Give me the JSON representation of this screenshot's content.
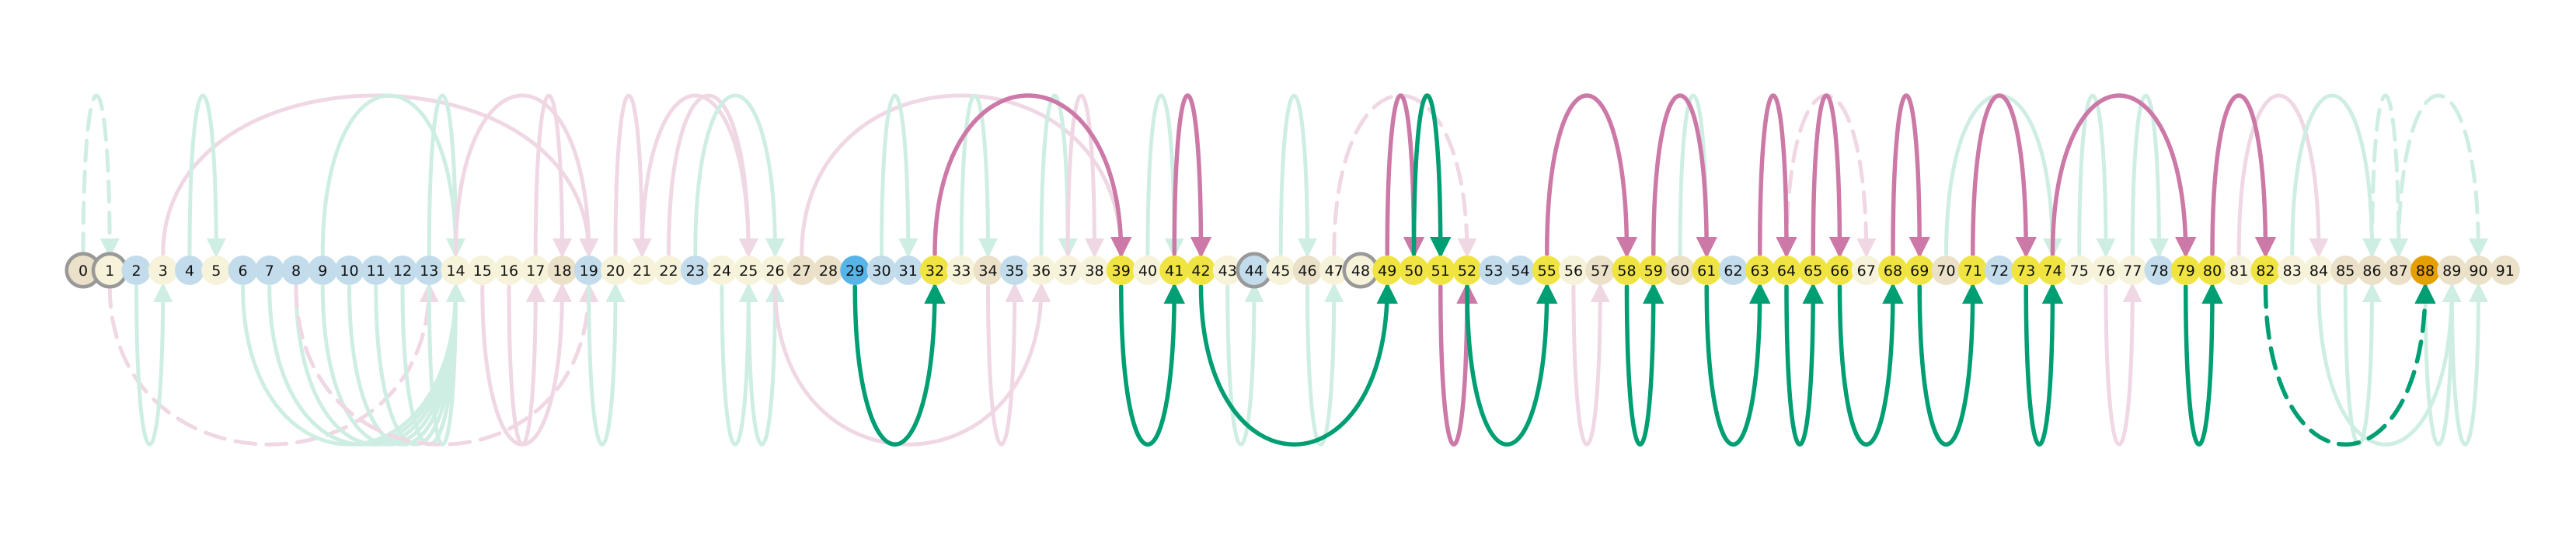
{
  "palette": {
    "node_default": "#ebe1c8",
    "node_light": "#f7f3da",
    "node_blue": "#c2dcec",
    "node_yellow": "#f0e442",
    "node_darkblue": "#56b4e9",
    "node_orange": "#e69f00",
    "ring": "#999999",
    "green_strong": "#009e73",
    "green_faint": "#cfeee3",
    "pink_strong": "#cc79a7",
    "pink_faint": "#f0d7e4"
  },
  "nodes": [
    {
      "label": "0",
      "color": "node_default",
      "ring": true
    },
    {
      "label": "1",
      "color": "node_light",
      "ring": true
    },
    {
      "label": "2",
      "color": "node_blue"
    },
    {
      "label": "3",
      "color": "node_light"
    },
    {
      "label": "4",
      "color": "node_blue"
    },
    {
      "label": "5",
      "color": "node_light"
    },
    {
      "label": "6",
      "color": "node_blue"
    },
    {
      "label": "7",
      "color": "node_blue"
    },
    {
      "label": "8",
      "color": "node_blue"
    },
    {
      "label": "9",
      "color": "node_blue"
    },
    {
      "label": "10",
      "color": "node_blue"
    },
    {
      "label": "11",
      "color": "node_blue"
    },
    {
      "label": "12",
      "color": "node_blue"
    },
    {
      "label": "13",
      "color": "node_blue"
    },
    {
      "label": "14",
      "color": "node_light"
    },
    {
      "label": "15",
      "color": "node_light"
    },
    {
      "label": "16",
      "color": "node_light"
    },
    {
      "label": "17",
      "color": "node_light"
    },
    {
      "label": "18",
      "color": "node_default"
    },
    {
      "label": "19",
      "color": "node_blue"
    },
    {
      "label": "20",
      "color": "node_light"
    },
    {
      "label": "21",
      "color": "node_light"
    },
    {
      "label": "22",
      "color": "node_light"
    },
    {
      "label": "23",
      "color": "node_blue"
    },
    {
      "label": "24",
      "color": "node_light"
    },
    {
      "label": "25",
      "color": "node_light"
    },
    {
      "label": "26",
      "color": "node_light"
    },
    {
      "label": "27",
      "color": "node_default"
    },
    {
      "label": "28",
      "color": "node_default"
    },
    {
      "label": "29",
      "color": "node_darkblue"
    },
    {
      "label": "30",
      "color": "node_blue"
    },
    {
      "label": "31",
      "color": "node_blue"
    },
    {
      "label": "32",
      "color": "node_yellow"
    },
    {
      "label": "33",
      "color": "node_light"
    },
    {
      "label": "34",
      "color": "node_default"
    },
    {
      "label": "35",
      "color": "node_blue"
    },
    {
      "label": "36",
      "color": "node_light"
    },
    {
      "label": "37",
      "color": "node_light"
    },
    {
      "label": "38",
      "color": "node_light"
    },
    {
      "label": "39",
      "color": "node_yellow"
    },
    {
      "label": "40",
      "color": "node_light"
    },
    {
      "label": "41",
      "color": "node_yellow"
    },
    {
      "label": "42",
      "color": "node_yellow"
    },
    {
      "label": "43",
      "color": "node_light"
    },
    {
      "label": "44",
      "color": "node_blue",
      "ring": true
    },
    {
      "label": "45",
      "color": "node_light"
    },
    {
      "label": "46",
      "color": "node_default"
    },
    {
      "label": "47",
      "color": "node_light"
    },
    {
      "label": "48",
      "color": "node_light",
      "ring": true
    },
    {
      "label": "49",
      "color": "node_yellow"
    },
    {
      "label": "50",
      "color": "node_yellow"
    },
    {
      "label": "51",
      "color": "node_yellow"
    },
    {
      "label": "52",
      "color": "node_yellow"
    },
    {
      "label": "53",
      "color": "node_blue"
    },
    {
      "label": "54",
      "color": "node_blue"
    },
    {
      "label": "55",
      "color": "node_yellow"
    },
    {
      "label": "56",
      "color": "node_light"
    },
    {
      "label": "57",
      "color": "node_default"
    },
    {
      "label": "58",
      "color": "node_yellow"
    },
    {
      "label": "59",
      "color": "node_yellow"
    },
    {
      "label": "60",
      "color": "node_default"
    },
    {
      "label": "61",
      "color": "node_yellow"
    },
    {
      "label": "62",
      "color": "node_blue"
    },
    {
      "label": "63",
      "color": "node_yellow"
    },
    {
      "label": "64",
      "color": "node_yellow"
    },
    {
      "label": "65",
      "color": "node_yellow"
    },
    {
      "label": "66",
      "color": "node_yellow"
    },
    {
      "label": "67",
      "color": "node_light"
    },
    {
      "label": "68",
      "color": "node_yellow"
    },
    {
      "label": "69",
      "color": "node_yellow"
    },
    {
      "label": "70",
      "color": "node_default"
    },
    {
      "label": "71",
      "color": "node_yellow"
    },
    {
      "label": "72",
      "color": "node_blue"
    },
    {
      "label": "73",
      "color": "node_yellow"
    },
    {
      "label": "74",
      "color": "node_yellow"
    },
    {
      "label": "75",
      "color": "node_light"
    },
    {
      "label": "76",
      "color": "node_light"
    },
    {
      "label": "77",
      "color": "node_light"
    },
    {
      "label": "78",
      "color": "node_blue"
    },
    {
      "label": "79",
      "color": "node_yellow"
    },
    {
      "label": "80",
      "color": "node_yellow"
    },
    {
      "label": "81",
      "color": "node_light"
    },
    {
      "label": "82",
      "color": "node_yellow"
    },
    {
      "label": "83",
      "color": "node_light"
    },
    {
      "label": "84",
      "color": "node_light"
    },
    {
      "label": "85",
      "color": "node_default"
    },
    {
      "label": "86",
      "color": "node_default"
    },
    {
      "label": "87",
      "color": "node_default"
    },
    {
      "label": "88",
      "color": "node_orange"
    },
    {
      "label": "89",
      "color": "node_default"
    },
    {
      "label": "90",
      "color": "node_default"
    },
    {
      "label": "91",
      "color": "node_default"
    }
  ],
  "edges": [
    {
      "from": 0,
      "to": 1,
      "side": "above",
      "color": "green_faint",
      "dash": true
    },
    {
      "from": 1,
      "to": 13,
      "side": "below",
      "color": "pink_faint",
      "dash": true
    },
    {
      "from": 3,
      "to": 19,
      "side": "above",
      "color": "pink_faint"
    },
    {
      "from": 4,
      "to": 5,
      "side": "above",
      "color": "green_faint"
    },
    {
      "from": 2,
      "to": 3,
      "side": "below",
      "color": "green_faint"
    },
    {
      "from": 6,
      "to": 14,
      "side": "below",
      "color": "green_faint"
    },
    {
      "from": 7,
      "to": 14,
      "side": "below",
      "color": "green_faint"
    },
    {
      "from": 8,
      "to": 14,
      "side": "below",
      "color": "green_faint"
    },
    {
      "from": 9,
      "to": 14,
      "side": "below",
      "color": "green_faint"
    },
    {
      "from": 10,
      "to": 14,
      "side": "below",
      "color": "green_faint"
    },
    {
      "from": 11,
      "to": 14,
      "side": "below",
      "color": "green_faint"
    },
    {
      "from": 12,
      "to": 14,
      "side": "below",
      "color": "green_faint"
    },
    {
      "from": 13,
      "to": 14,
      "side": "below",
      "color": "green_faint"
    },
    {
      "from": 9,
      "to": 14,
      "side": "above",
      "color": "green_faint"
    },
    {
      "from": 13,
      "to": 14,
      "side": "above",
      "color": "green_faint"
    },
    {
      "from": 14,
      "to": 19,
      "side": "above",
      "color": "pink_faint"
    },
    {
      "from": 15,
      "to": 18,
      "side": "below",
      "color": "pink_faint"
    },
    {
      "from": 16,
      "to": 17,
      "side": "below",
      "color": "pink_faint"
    },
    {
      "from": 8,
      "to": 19,
      "side": "below",
      "color": "pink_faint",
      "dash": true
    },
    {
      "from": 17,
      "to": 18,
      "side": "above",
      "color": "pink_faint"
    },
    {
      "from": 19,
      "to": 20,
      "side": "below",
      "color": "green_faint"
    },
    {
      "from": 20,
      "to": 21,
      "side": "above",
      "color": "pink_faint"
    },
    {
      "from": 21,
      "to": 25,
      "side": "above",
      "color": "pink_faint"
    },
    {
      "from": 22,
      "to": 25,
      "side": "above",
      "color": "pink_faint"
    },
    {
      "from": 23,
      "to": 26,
      "side": "above",
      "color": "green_faint"
    },
    {
      "from": 24,
      "to": 25,
      "side": "below",
      "color": "green_faint"
    },
    {
      "from": 25,
      "to": 26,
      "side": "below",
      "color": "green_faint"
    },
    {
      "from": 26,
      "to": 36,
      "side": "below",
      "color": "pink_faint"
    },
    {
      "from": 27,
      "to": 39,
      "side": "above",
      "color": "pink_faint"
    },
    {
      "from": 29,
      "to": 32,
      "side": "below",
      "color": "green_strong",
      "strong": true
    },
    {
      "from": 32,
      "to": 39,
      "side": "above",
      "color": "pink_strong",
      "strong": true
    },
    {
      "from": 30,
      "to": 31,
      "side": "above",
      "color": "green_faint"
    },
    {
      "from": 33,
      "to": 34,
      "side": "above",
      "color": "green_faint"
    },
    {
      "from": 34,
      "to": 35,
      "side": "below",
      "color": "pink_faint"
    },
    {
      "from": 36,
      "to": 37,
      "side": "above",
      "color": "green_faint"
    },
    {
      "from": 37,
      "to": 38,
      "side": "above",
      "color": "pink_faint"
    },
    {
      "from": 39,
      "to": 41,
      "side": "below",
      "color": "green_strong",
      "strong": true
    },
    {
      "from": 41,
      "to": 42,
      "side": "above",
      "color": "pink_strong",
      "strong": true
    },
    {
      "from": 42,
      "to": 49,
      "side": "below",
      "color": "green_strong",
      "strong": true
    },
    {
      "from": 40,
      "to": 41,
      "side": "above",
      "color": "green_faint"
    },
    {
      "from": 43,
      "to": 44,
      "side": "below",
      "color": "green_faint"
    },
    {
      "from": 45,
      "to": 46,
      "side": "above",
      "color": "green_faint"
    },
    {
      "from": 46,
      "to": 47,
      "side": "below",
      "color": "green_faint"
    },
    {
      "from": 47,
      "to": 52,
      "side": "above",
      "color": "pink_faint",
      "dash": true
    },
    {
      "from": 49,
      "to": 50,
      "side": "above",
      "color": "pink_strong",
      "strong": true
    },
    {
      "from": 50,
      "to": 51,
      "side": "above",
      "color": "green_strong",
      "strong": true
    },
    {
      "from": 51,
      "to": 52,
      "side": "below",
      "color": "pink_strong",
      "strong": true
    },
    {
      "from": 52,
      "to": 55,
      "side": "below",
      "color": "green_strong",
      "strong": true
    },
    {
      "from": 55,
      "to": 58,
      "side": "above",
      "color": "pink_strong",
      "strong": true
    },
    {
      "from": 56,
      "to": 57,
      "side": "below",
      "color": "pink_faint"
    },
    {
      "from": 58,
      "to": 59,
      "side": "below",
      "color": "green_strong",
      "strong": true
    },
    {
      "from": 59,
      "to": 61,
      "side": "above",
      "color": "pink_strong",
      "strong": true
    },
    {
      "from": 60,
      "to": 61,
      "side": "above",
      "color": "green_faint"
    },
    {
      "from": 61,
      "to": 63,
      "side": "below",
      "color": "green_strong",
      "strong": true
    },
    {
      "from": 63,
      "to": 64,
      "side": "above",
      "color": "pink_strong",
      "strong": true
    },
    {
      "from": 64,
      "to": 65,
      "side": "below",
      "color": "green_strong",
      "strong": true
    },
    {
      "from": 65,
      "to": 66,
      "side": "above",
      "color": "pink_strong",
      "strong": true
    },
    {
      "from": 66,
      "to": 68,
      "side": "below",
      "color": "green_strong",
      "strong": true
    },
    {
      "from": 64,
      "to": 67,
      "side": "above",
      "color": "pink_faint",
      "dash": true
    },
    {
      "from": 68,
      "to": 69,
      "side": "above",
      "color": "pink_strong",
      "strong": true
    },
    {
      "from": 69,
      "to": 71,
      "side": "below",
      "color": "green_strong",
      "strong": true
    },
    {
      "from": 71,
      "to": 73,
      "side": "above",
      "color": "pink_strong",
      "strong": true
    },
    {
      "from": 70,
      "to": 74,
      "side": "above",
      "color": "green_faint"
    },
    {
      "from": 73,
      "to": 74,
      "side": "below",
      "color": "green_strong",
      "strong": true
    },
    {
      "from": 74,
      "to": 79,
      "side": "above",
      "color": "pink_strong",
      "strong": true
    },
    {
      "from": 75,
      "to": 76,
      "side": "above",
      "color": "green_faint"
    },
    {
      "from": 76,
      "to": 77,
      "side": "below",
      "color": "pink_faint"
    },
    {
      "from": 77,
      "to": 78,
      "side": "above",
      "color": "green_faint"
    },
    {
      "from": 79,
      "to": 80,
      "side": "below",
      "color": "green_strong",
      "strong": true
    },
    {
      "from": 80,
      "to": 82,
      "side": "above",
      "color": "pink_strong",
      "strong": true
    },
    {
      "from": 82,
      "to": 88,
      "side": "below",
      "color": "green_strong",
      "strong": true,
      "dash": true
    },
    {
      "from": 81,
      "to": 84,
      "side": "above",
      "color": "pink_faint"
    },
    {
      "from": 83,
      "to": 86,
      "side": "above",
      "color": "green_faint"
    },
    {
      "from": 84,
      "to": 89,
      "side": "below",
      "color": "green_faint"
    },
    {
      "from": 85,
      "to": 86,
      "side": "below",
      "color": "green_faint"
    },
    {
      "from": 86,
      "to": 87,
      "side": "above",
      "color": "green_faint",
      "dash": true
    },
    {
      "from": 87,
      "to": 90,
      "side": "above",
      "color": "green_faint",
      "dash": true
    },
    {
      "from": 88,
      "to": 89,
      "side": "below",
      "color": "green_faint"
    },
    {
      "from": 89,
      "to": 90,
      "side": "below",
      "color": "green_faint"
    }
  ]
}
